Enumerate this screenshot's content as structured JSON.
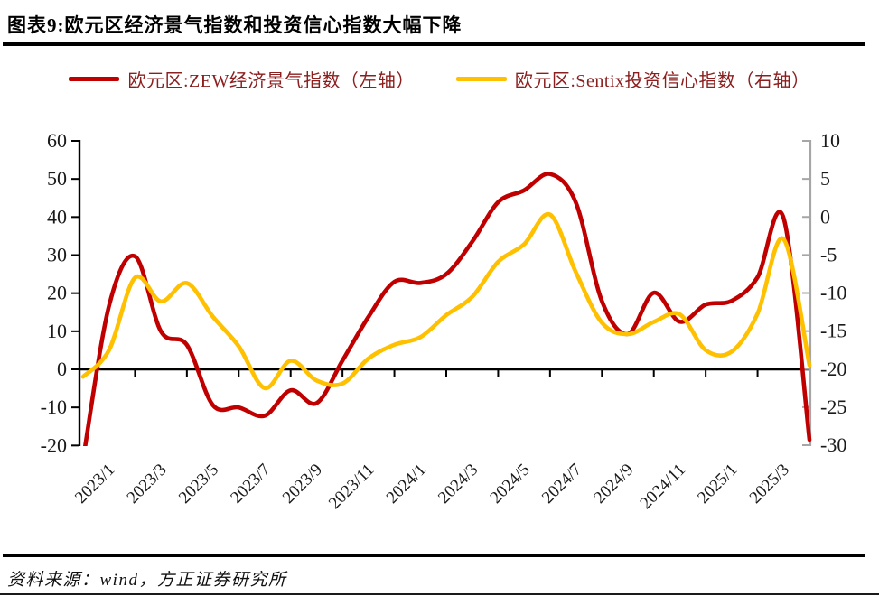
{
  "header": {
    "title": "图表9:欧元区经济景气指数和投资信心指数大幅下降"
  },
  "legend": {
    "text_color": "#8B1E1E",
    "items": [
      {
        "label": "欧元区:ZEW经济景气指数（左轴）",
        "color": "#C00000"
      },
      {
        "label": "欧元区:Sentix投资信心指数（右轴）",
        "color": "#FFC000"
      }
    ]
  },
  "chart_data": {
    "type": "line",
    "title": "",
    "categories": [
      "2022/12",
      "2023/1",
      "2023/2",
      "2023/3",
      "2023/4",
      "2023/5",
      "2023/6",
      "2023/7",
      "2023/8",
      "2023/9",
      "2023/10",
      "2023/11",
      "2023/12",
      "2024/1",
      "2024/2",
      "2024/3",
      "2024/4",
      "2024/5",
      "2024/6",
      "2024/7",
      "2024/8",
      "2024/9",
      "2024/10",
      "2024/11",
      "2024/12",
      "2025/1",
      "2025/2",
      "2025/3",
      "2025/4"
    ],
    "series": [
      {
        "name": "欧元区:ZEW经济景气指数（左轴）",
        "axis": "left",
        "color": "#C00000",
        "values": [
          -23.6,
          16.7,
          29.7,
          10.0,
          6.4,
          -9.4,
          -10.0,
          -12.2,
          -5.5,
          -8.9,
          2.3,
          13.8,
          23.0,
          22.7,
          25.0,
          33.5,
          43.9,
          47.0,
          51.3,
          43.7,
          17.9,
          9.3,
          20.1,
          12.5,
          17.0,
          18.0,
          24.2,
          39.8,
          -18.5
        ]
      },
      {
        "name": "欧元区:Sentix投资信心指数（右轴）",
        "axis": "right",
        "color": "#FFC000",
        "values": [
          -21.0,
          -17.5,
          -8.0,
          -11.1,
          -8.7,
          -13.1,
          -17.0,
          -22.5,
          -18.9,
          -21.5,
          -21.9,
          -18.6,
          -16.8,
          -15.8,
          -12.9,
          -10.5,
          -5.9,
          -3.6,
          0.3,
          -7.3,
          -13.9,
          -15.4,
          -13.8,
          -12.8,
          -17.5,
          -17.7,
          -12.7,
          -2.9,
          -19.5
        ]
      }
    ],
    "left_axis": {
      "min": -20,
      "max": 60,
      "ticks": [
        60,
        50,
        40,
        30,
        20,
        10,
        0,
        -10,
        -20
      ],
      "color": "#000000"
    },
    "right_axis": {
      "min": -30,
      "max": 10,
      "ticks": [
        10,
        5,
        0,
        -5,
        -10,
        -15,
        -20,
        -25,
        -30
      ],
      "color": "#A6A6A6"
    },
    "x_tick_labels": [
      "2023/1",
      "2023/3",
      "2023/5",
      "2023/7",
      "2023/9",
      "2023/11",
      "2024/1",
      "2024/3",
      "2024/5",
      "2024/7",
      "2024/9",
      "2024/11",
      "2025/1",
      "2025/3"
    ],
    "grid": false,
    "legend_position": "top",
    "zero_baseline": true,
    "smooth_lines": true
  },
  "footer": {
    "source": "资料来源：wind，方正证券研究所"
  }
}
